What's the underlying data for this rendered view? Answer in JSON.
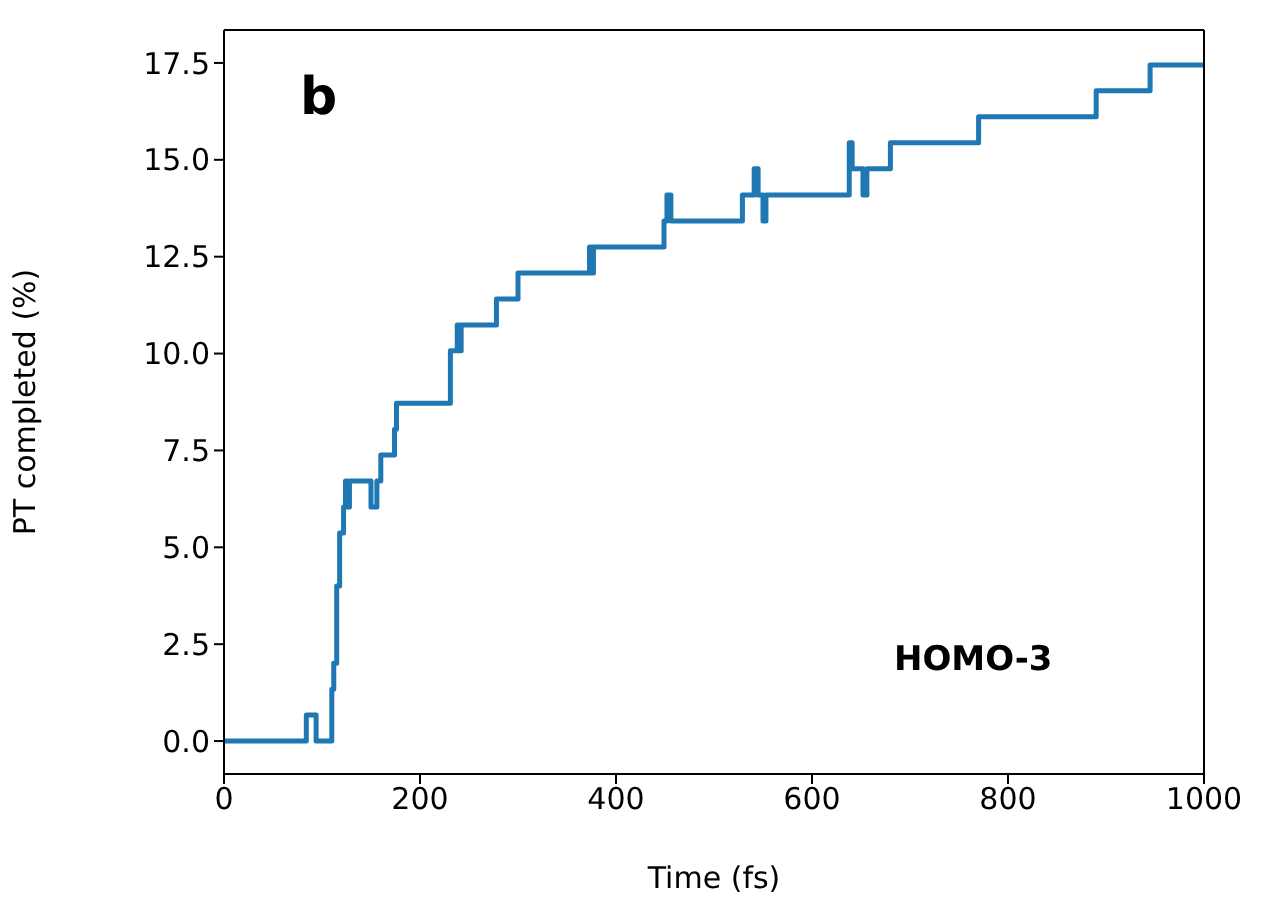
{
  "chart_data": {
    "type": "step",
    "xlabel": "Time (fs)",
    "ylabel": "PT completed (%)",
    "annotations": [
      "b",
      "HOMO-3"
    ],
    "x": [
      0,
      84,
      94,
      110,
      112,
      115,
      118,
      122,
      124,
      126,
      128,
      130,
      150,
      156,
      160,
      174,
      176,
      231,
      238,
      240,
      242,
      245,
      278,
      300,
      373,
      375,
      377,
      449,
      452,
      456,
      529,
      541,
      545,
      550,
      553,
      638,
      641,
      652,
      656,
      680,
      770,
      890,
      945,
      1000
    ],
    "series": [
      {
        "color": "#1f77b4",
        "values": [
          0,
          0.67,
          0,
          1.34,
          2.01,
          4.0,
          5.37,
          6.04,
          6.71,
          6.04,
          6.71,
          6.71,
          6.04,
          6.71,
          7.38,
          8.05,
          8.72,
          10.07,
          10.74,
          10.07,
          10.74,
          10.74,
          11.41,
          12.08,
          12.75,
          12.08,
          12.75,
          13.42,
          14.09,
          13.42,
          14.09,
          14.77,
          14.09,
          13.42,
          14.09,
          15.44,
          14.77,
          14.09,
          14.77,
          15.44,
          16.11,
          16.78,
          17.45,
          17.45
        ]
      }
    ],
    "xlim": [
      0,
      1000
    ],
    "xticks": [
      0,
      200,
      400,
      600,
      800,
      1000
    ],
    "ylim": [
      -0.85,
      18.35
    ],
    "yticks": [
      {
        "value": 0,
        "label": "0.0"
      },
      {
        "value": 2.5,
        "label": "2.5"
      },
      {
        "value": 5,
        "label": "5.0"
      },
      {
        "value": 7.5,
        "label": "7.5"
      },
      {
        "value": 10,
        "label": "10.0"
      },
      {
        "value": 12.5,
        "label": "12.5"
      },
      {
        "value": 15,
        "label": "15.0"
      },
      {
        "value": 17.5,
        "label": "17.5"
      }
    ],
    "grid": false,
    "legend": false,
    "marker": "none",
    "line_style": "solid"
  }
}
